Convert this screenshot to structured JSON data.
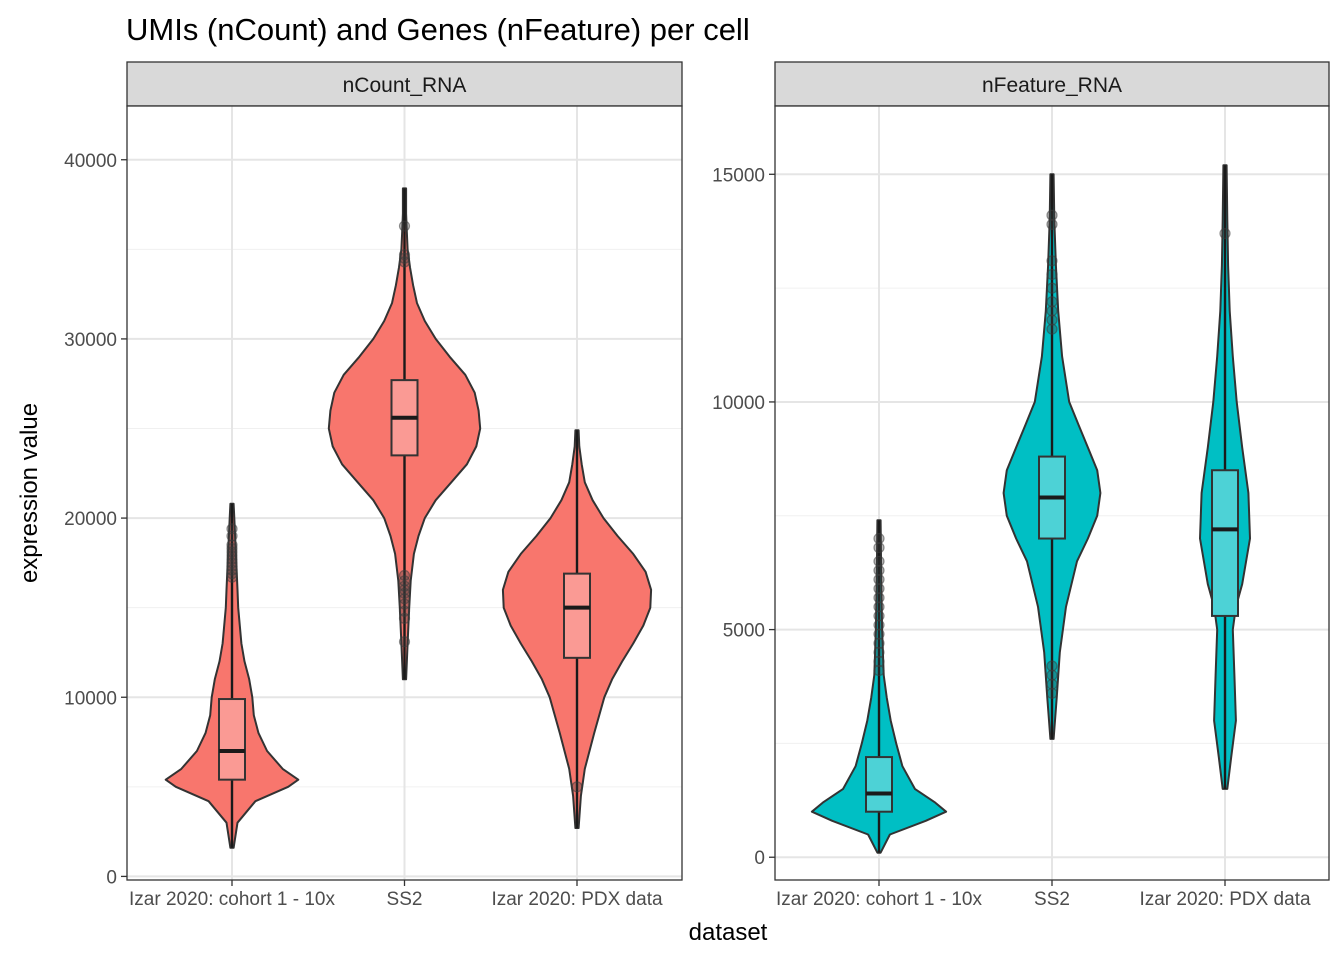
{
  "chart_data": {
    "type": "violin",
    "title": "UMIs (nCount) and Genes (nFeature) per cell",
    "xlabel": "dataset",
    "ylabel": "expression value",
    "categories": [
      "Izar 2020: cohort 1 - 10x",
      "SS2",
      "Izar 2020: PDX data"
    ],
    "grid": true,
    "panels": [
      {
        "name": "nCount_RNA",
        "fill": "#F8766D",
        "box_fill": "#FA9A94",
        "ylim": [
          -200,
          43000
        ],
        "yticks": [
          0,
          10000,
          20000,
          30000,
          40000
        ],
        "tick_labels": [
          "0",
          "10000",
          "20000",
          "30000",
          "40000"
        ],
        "groups": [
          {
            "category": "Izar 2020: cohort 1 - 10x",
            "whisker": [
              1600,
              20800
            ],
            "box": {
              "q1": 5400,
              "median": 7000,
              "q3": 9900
            },
            "density": [
              [
                1600,
                0.02
              ],
              [
                3000,
                0.07
              ],
              [
                4200,
                0.3
              ],
              [
                5000,
                0.72
              ],
              [
                5400,
                0.85
              ],
              [
                6000,
                0.65
              ],
              [
                7000,
                0.45
              ],
              [
                8000,
                0.34
              ],
              [
                9000,
                0.28
              ],
              [
                10000,
                0.26
              ],
              [
                11000,
                0.22
              ],
              [
                12000,
                0.16
              ],
              [
                13000,
                0.12
              ],
              [
                14000,
                0.1
              ],
              [
                15000,
                0.08
              ],
              [
                16000,
                0.07
              ],
              [
                17000,
                0.06
              ],
              [
                18000,
                0.05
              ],
              [
                19000,
                0.04
              ],
              [
                20000,
                0.03
              ],
              [
                20800,
                0.02
              ]
            ],
            "outliers": [
              16700,
              16900,
              17100,
              17300,
              17500,
              17700,
              17900,
              18100,
              18300,
              18500,
              19000,
              19400
            ]
          },
          {
            "category": "SS2",
            "whisker": [
              11000,
              38400
            ],
            "box": {
              "q1": 23500,
              "median": 25600,
              "q3": 27700
            },
            "density": [
              [
                11000,
                0.02
              ],
              [
                13000,
                0.04
              ],
              [
                15000,
                0.06
              ],
              [
                16500,
                0.08
              ],
              [
                18000,
                0.12
              ],
              [
                19000,
                0.18
              ],
              [
                20000,
                0.26
              ],
              [
                21000,
                0.4
              ],
              [
                22000,
                0.6
              ],
              [
                23000,
                0.8
              ],
              [
                24000,
                0.92
              ],
              [
                25000,
                0.97
              ],
              [
                26000,
                0.95
              ],
              [
                27000,
                0.9
              ],
              [
                28000,
                0.78
              ],
              [
                29000,
                0.58
              ],
              [
                30000,
                0.4
              ],
              [
                31000,
                0.26
              ],
              [
                32000,
                0.16
              ],
              [
                33000,
                0.11
              ],
              [
                34000,
                0.07
              ],
              [
                35000,
                0.04
              ],
              [
                36000,
                0.03
              ],
              [
                37000,
                0.02
              ],
              [
                38400,
                0.02
              ]
            ],
            "outliers": [
              13100,
              14400,
              14800,
              15200,
              15500,
              15800,
              16000,
              16200,
              16500,
              16800,
              34300,
              34500,
              34700,
              36300
            ]
          },
          {
            "category": "Izar 2020: PDX data",
            "whisker": [
              2700,
              24900
            ],
            "box": {
              "q1": 12200,
              "median": 15000,
              "q3": 16900
            },
            "density": [
              [
                2700,
                0.02
              ],
              [
                4500,
                0.05
              ],
              [
                6000,
                0.1
              ],
              [
                8000,
                0.22
              ],
              [
                10000,
                0.35
              ],
              [
                11000,
                0.45
              ],
              [
                12000,
                0.58
              ],
              [
                13000,
                0.72
              ],
              [
                14000,
                0.85
              ],
              [
                15000,
                0.94
              ],
              [
                16000,
                0.95
              ],
              [
                17000,
                0.88
              ],
              [
                18000,
                0.72
              ],
              [
                19000,
                0.52
              ],
              [
                20000,
                0.34
              ],
              [
                21000,
                0.2
              ],
              [
                22000,
                0.1
              ],
              [
                23000,
                0.06
              ],
              [
                24000,
                0.03
              ],
              [
                24900,
                0.02
              ]
            ],
            "outliers": [
              5000
            ]
          }
        ]
      },
      {
        "name": "nFeature_RNA",
        "fill": "#00BFC4",
        "box_fill": "#4DD2D6",
        "ylim": [
          -500,
          16500
        ],
        "yticks": [
          0,
          5000,
          10000,
          15000
        ],
        "tick_labels": [
          "0",
          "5000",
          "10000",
          "15000"
        ],
        "groups": [
          {
            "category": "Izar 2020: cohort 1 - 10x",
            "whisker": [
              100,
              7400
            ],
            "box": {
              "q1": 1000,
              "median": 1400,
              "q3": 2200
            },
            "density": [
              [
                100,
                0.02
              ],
              [
                500,
                0.14
              ],
              [
                800,
                0.6
              ],
              [
                1000,
                0.86
              ],
              [
                1200,
                0.72
              ],
              [
                1500,
                0.46
              ],
              [
                2000,
                0.3
              ],
              [
                2500,
                0.22
              ],
              [
                3000,
                0.15
              ],
              [
                3500,
                0.1
              ],
              [
                4000,
                0.06
              ],
              [
                5000,
                0.04
              ],
              [
                6000,
                0.03
              ],
              [
                7400,
                0.02
              ]
            ],
            "outliers": [
              4100,
              4300,
              4500,
              4700,
              4900,
              5100,
              5300,
              5500,
              5700,
              5900,
              6100,
              6300,
              6500,
              6800,
              7000
            ]
          },
          {
            "category": "SS2",
            "whisker": [
              2600,
              15000
            ],
            "box": {
              "q1": 7000,
              "median": 7900,
              "q3": 8800
            },
            "density": [
              [
                2600,
                0.02
              ],
              [
                3500,
                0.06
              ],
              [
                4500,
                0.1
              ],
              [
                5500,
                0.18
              ],
              [
                6500,
                0.32
              ],
              [
                7000,
                0.46
              ],
              [
                7500,
                0.58
              ],
              [
                8000,
                0.62
              ],
              [
                8500,
                0.58
              ],
              [
                9000,
                0.46
              ],
              [
                9500,
                0.34
              ],
              [
                10000,
                0.22
              ],
              [
                11000,
                0.13
              ],
              [
                12000,
                0.08
              ],
              [
                13000,
                0.05
              ],
              [
                14000,
                0.03
              ],
              [
                15000,
                0.02
              ]
            ],
            "outliers": [
              3600,
              3800,
              4000,
              4200,
              11600,
              11800,
              12000,
              12200,
              12500,
              12800,
              13100,
              13900,
              14100
            ]
          },
          {
            "category": "Izar 2020: PDX data",
            "whisker": [
              1500,
              15200
            ],
            "box": {
              "q1": 5300,
              "median": 7200,
              "q3": 8500
            },
            "density": [
              [
                1500,
                0.03
              ],
              [
                2200,
                0.08
              ],
              [
                3000,
                0.14
              ],
              [
                4000,
                0.12
              ],
              [
                5000,
                0.1
              ],
              [
                5500,
                0.14
              ],
              [
                6000,
                0.22
              ],
              [
                7000,
                0.32
              ],
              [
                8000,
                0.3
              ],
              [
                9000,
                0.22
              ],
              [
                10000,
                0.15
              ],
              [
                11000,
                0.1
              ],
              [
                12000,
                0.06
              ],
              [
                13000,
                0.04
              ],
              [
                14000,
                0.03
              ],
              [
                15200,
                0.02
              ]
            ],
            "outliers": [
              13700
            ]
          }
        ]
      }
    ]
  }
}
